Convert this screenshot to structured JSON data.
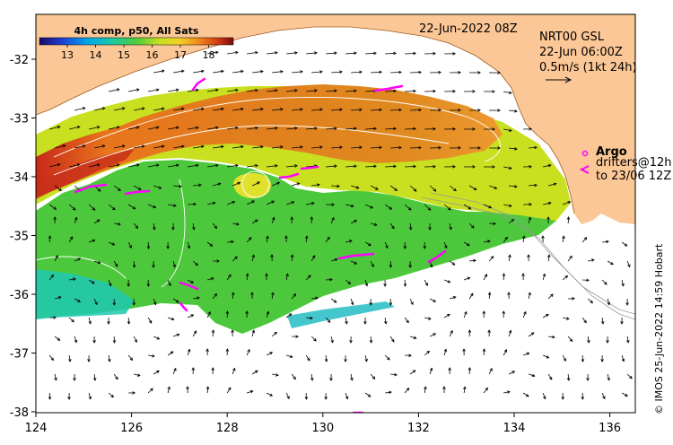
{
  "map": {
    "date_label": "22-Jun-2022 08Z",
    "product": {
      "line1": "NRT00 GSL",
      "line2": "22-Jun 06:00Z",
      "line3": "0.5m/s (1kt 24h)"
    },
    "legend": {
      "argo_label": "Argo",
      "drifters_label": "drifters@12h",
      "drifters_to": "to 23/06 12Z"
    },
    "colorbar": {
      "title": "4h comp, p50, All Sats",
      "ticks": [
        "13",
        "14",
        "15",
        "16",
        "17",
        "18"
      ]
    },
    "credit": "© IMOS 25-Jun-2022 14:59 Hobart",
    "lon_ticks": [
      "124",
      "126",
      "128",
      "130",
      "132",
      "134",
      "136"
    ],
    "lat_ticks": [
      "-32",
      "-33",
      "-34",
      "-35",
      "-36",
      "-37",
      "-38"
    ],
    "colors": {
      "land": "#FBC796",
      "warm": "#E8741C",
      "cool": "#4DC83C",
      "drifter": "#FF00FF"
    }
  }
}
